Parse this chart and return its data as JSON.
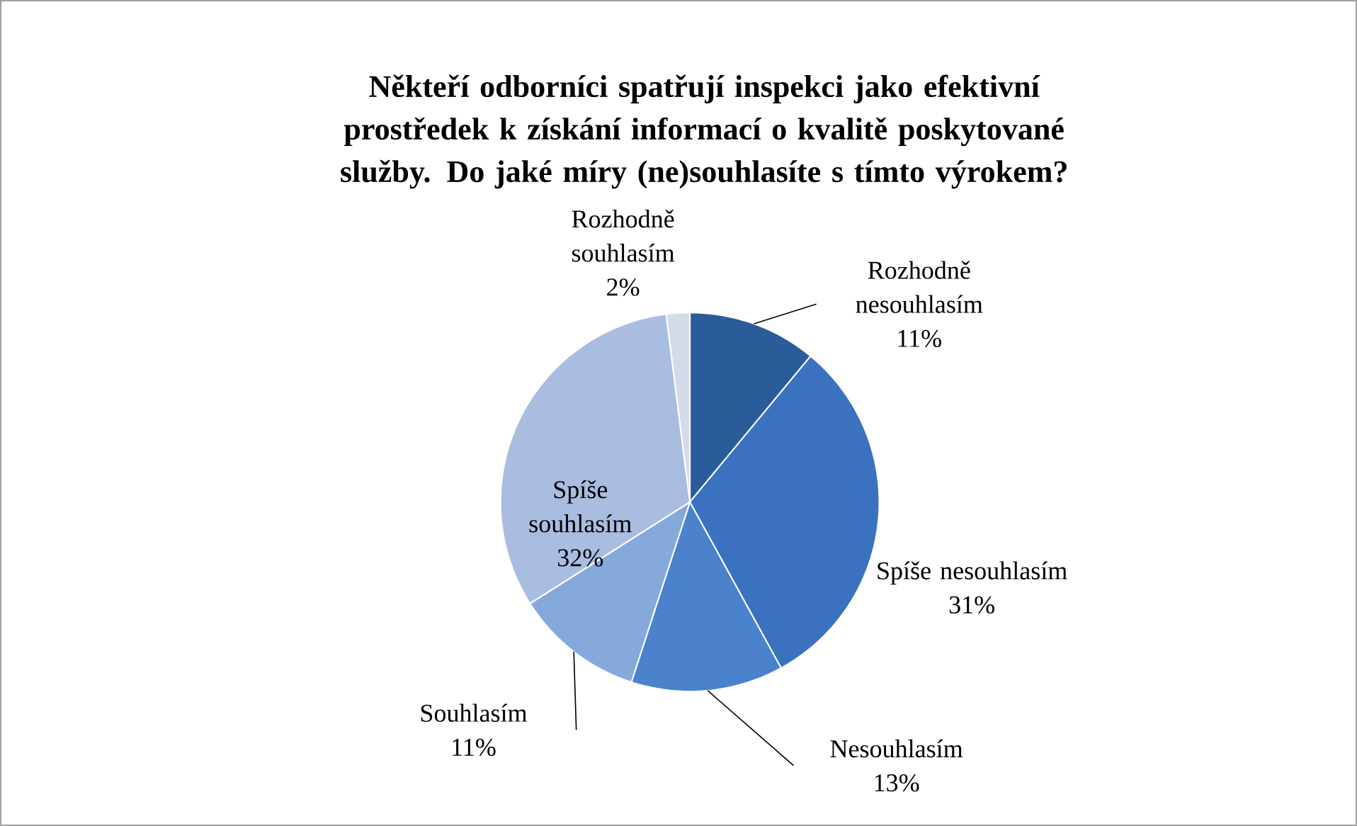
{
  "chart_data": {
    "type": "pie",
    "title": "Někteří odborníci spatřují inspekci jako efektivní prostředek k získání informací o kvalitě poskytované služby. Do jaké míry (ne)souhlasíte s tímto výrokem?",
    "categories": [
      "Rozhodně nesouhlasím",
      "Spíše nesouhlasím",
      "Nesouhlasím",
      "Souhlasím",
      "Spíše souhlasím",
      "Rozhodně souhlasím"
    ],
    "values": [
      11,
      31,
      13,
      11,
      32,
      2
    ],
    "value_labels": [
      "11%",
      "31%",
      "13%",
      "11%",
      "32%",
      "2%"
    ],
    "colors": [
      "#2b5c9a",
      "#3a72c0",
      "#4a82cc",
      "#86a9dc",
      "#a9bde0",
      "#d4dbe8"
    ]
  }
}
